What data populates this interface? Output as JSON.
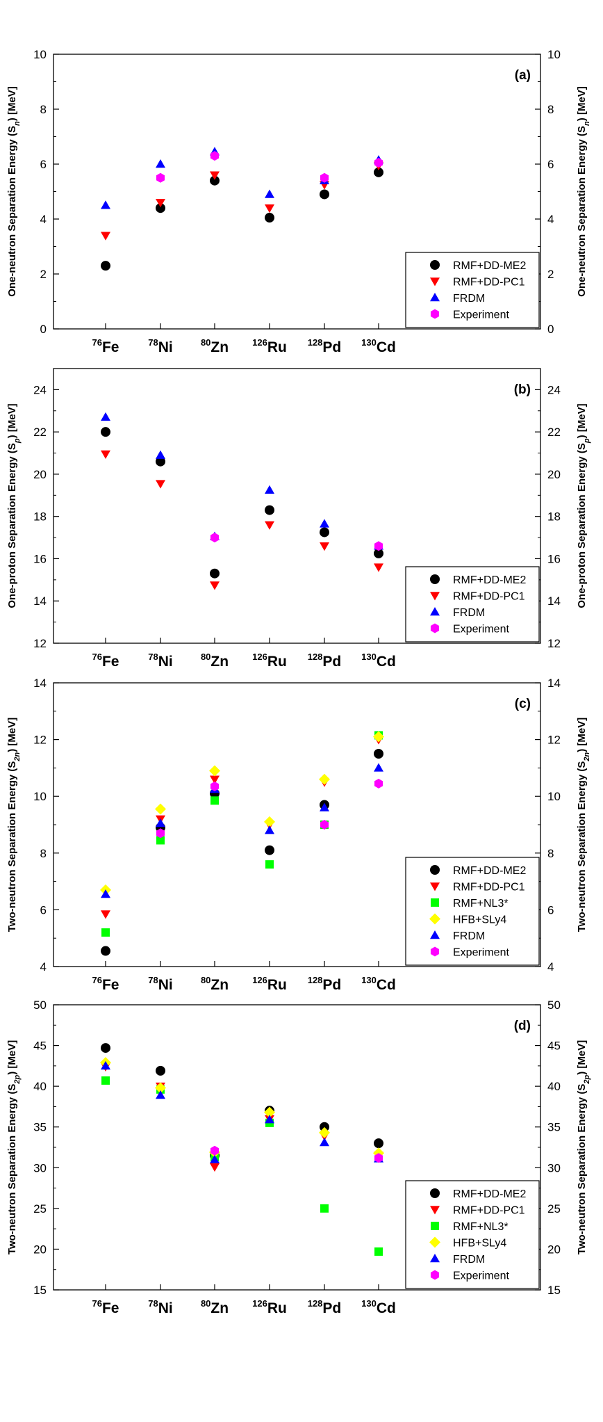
{
  "chart_data": [
    {
      "type": "scatter",
      "panel": "(a)",
      "ylabel": "One-neutron Separation Energy (S_n) [MeV]",
      "ylabel_sub": "n",
      "ylim": [
        0,
        10
      ],
      "yticks": [
        0,
        2,
        4,
        6,
        8,
        10
      ],
      "categories": [
        {
          "mass": "76",
          "element": "Fe"
        },
        {
          "mass": "78",
          "element": "Ni"
        },
        {
          "mass": "80",
          "element": "Zn"
        },
        {
          "mass": "126",
          "element": "Ru"
        },
        {
          "mass": "128",
          "element": "Pd"
        },
        {
          "mass": "130",
          "element": "Cd"
        }
      ],
      "legend_position": "bottom-right",
      "series": [
        {
          "name": "RMF+DD-ME2",
          "marker": "circle",
          "color": "#000000",
          "values": [
            2.3,
            4.4,
            5.4,
            4.05,
            4.9,
            5.7
          ]
        },
        {
          "name": "RMF+DD-PC1",
          "marker": "triangle-down",
          "color": "#ff0000",
          "values": [
            3.4,
            4.6,
            5.6,
            4.4,
            5.25,
            5.95
          ]
        },
        {
          "name": "FRDM",
          "marker": "triangle-up",
          "color": "#0000ff",
          "values": [
            4.5,
            6.0,
            6.45,
            4.9,
            5.4,
            6.15
          ]
        },
        {
          "name": "Experiment",
          "marker": "hexagon",
          "color": "#ff00ff",
          "values": [
            null,
            5.5,
            6.3,
            null,
            5.5,
            6.05
          ]
        }
      ]
    },
    {
      "type": "scatter",
      "panel": "(b)",
      "ylabel": "One-proton Separation Energy (S_p) [MeV]",
      "ylabel_sub": "p",
      "ylim": [
        12,
        25
      ],
      "yticks": [
        12,
        14,
        16,
        18,
        20,
        22,
        24
      ],
      "categories": [
        {
          "mass": "76",
          "element": "Fe"
        },
        {
          "mass": "78",
          "element": "Ni"
        },
        {
          "mass": "80",
          "element": "Zn"
        },
        {
          "mass": "126",
          "element": "Ru"
        },
        {
          "mass": "128",
          "element": "Pd"
        },
        {
          "mass": "130",
          "element": "Cd"
        }
      ],
      "legend_position": "bottom-right",
      "series": [
        {
          "name": "RMF+DD-ME2",
          "marker": "circle",
          "color": "#000000",
          "values": [
            22.0,
            20.6,
            15.3,
            18.3,
            17.25,
            16.25
          ]
        },
        {
          "name": "RMF+DD-PC1",
          "marker": "triangle-down",
          "color": "#ff0000",
          "values": [
            20.95,
            19.55,
            14.75,
            17.6,
            16.6,
            15.6
          ]
        },
        {
          "name": "FRDM",
          "marker": "triangle-up",
          "color": "#0000ff",
          "values": [
            22.7,
            20.9,
            17.05,
            19.25,
            17.65,
            16.6
          ]
        },
        {
          "name": "Experiment",
          "marker": "hexagon",
          "color": "#ff00ff",
          "values": [
            null,
            null,
            17.0,
            null,
            null,
            16.6
          ]
        }
      ]
    },
    {
      "type": "scatter",
      "panel": "(c)",
      "ylabel": "Two-neutron Separation Energy (S_2n) [MeV]",
      "ylabel_sub": "2n",
      "ylim": [
        4,
        14
      ],
      "yticks": [
        4,
        6,
        8,
        10,
        12,
        14
      ],
      "categories": [
        {
          "mass": "76",
          "element": "Fe"
        },
        {
          "mass": "78",
          "element": "Ni"
        },
        {
          "mass": "80",
          "element": "Zn"
        },
        {
          "mass": "126",
          "element": "Ru"
        },
        {
          "mass": "128",
          "element": "Pd"
        },
        {
          "mass": "130",
          "element": "Cd"
        }
      ],
      "legend_position": "bottom-right",
      "series": [
        {
          "name": "RMF+DD-ME2",
          "marker": "circle",
          "color": "#000000",
          "values": [
            4.55,
            8.9,
            10.1,
            8.1,
            9.7,
            11.5
          ]
        },
        {
          "name": "RMF+DD-PC1",
          "marker": "triangle-down",
          "color": "#ff0000",
          "values": [
            5.85,
            9.2,
            10.6,
            9.0,
            10.5,
            12.0
          ]
        },
        {
          "name": "RMF+NL3*",
          "marker": "square",
          "color": "#00ff00",
          "values": [
            5.2,
            8.45,
            9.85,
            7.6,
            9.0,
            12.15
          ]
        },
        {
          "name": "HFB+SLy4",
          "marker": "diamond",
          "color": "#ffff00",
          "values": [
            6.7,
            9.55,
            10.9,
            9.1,
            10.6,
            12.1
          ]
        },
        {
          "name": "FRDM",
          "marker": "triangle-up",
          "color": "#0000ff",
          "values": [
            6.55,
            9.05,
            10.25,
            8.8,
            9.6,
            11.0
          ]
        },
        {
          "name": "Experiment",
          "marker": "hexagon",
          "color": "#ff00ff",
          "values": [
            null,
            8.7,
            10.35,
            null,
            9.0,
            10.45
          ]
        }
      ]
    },
    {
      "type": "scatter",
      "panel": "(d)",
      "ylabel": "Two-neutron Separation Energy (S_2p) [MeV]",
      "ylabel_sub": "2p",
      "ylim": [
        15,
        50
      ],
      "yticks": [
        15,
        20,
        25,
        30,
        35,
        40,
        45,
        50
      ],
      "categories": [
        {
          "mass": "76",
          "element": "Fe"
        },
        {
          "mass": "78",
          "element": "Ni"
        },
        {
          "mass": "80",
          "element": "Zn"
        },
        {
          "mass": "126",
          "element": "Ru"
        },
        {
          "mass": "128",
          "element": "Pd"
        },
        {
          "mass": "130",
          "element": "Cd"
        }
      ],
      "legend_position": "bottom-right",
      "series": [
        {
          "name": "RMF+DD-ME2",
          "marker": "circle",
          "color": "#000000",
          "values": [
            44.7,
            41.9,
            31.5,
            37.0,
            35.0,
            33.0
          ]
        },
        {
          "name": "RMF+DD-PC1",
          "marker": "triangle-down",
          "color": "#ff0000",
          "values": [
            42.4,
            40.0,
            30.1,
            36.0,
            33.9,
            31.5
          ]
        },
        {
          "name": "RMF+NL3*",
          "marker": "square",
          "color": "#00ff00",
          "values": [
            40.7,
            39.6,
            31.3,
            35.5,
            25.0,
            19.7
          ]
        },
        {
          "name": "HFB+SLy4",
          "marker": "diamond",
          "color": "#ffff00",
          "values": [
            42.9,
            39.8,
            31.9,
            36.8,
            34.3,
            31.8
          ]
        },
        {
          "name": "FRDM",
          "marker": "triangle-up",
          "color": "#0000ff",
          "values": [
            42.5,
            38.9,
            31.0,
            35.9,
            33.1,
            31.1
          ]
        },
        {
          "name": "Experiment",
          "marker": "hexagon",
          "color": "#ff00ff",
          "values": [
            null,
            null,
            32.1,
            null,
            null,
            31.2
          ]
        }
      ]
    }
  ]
}
